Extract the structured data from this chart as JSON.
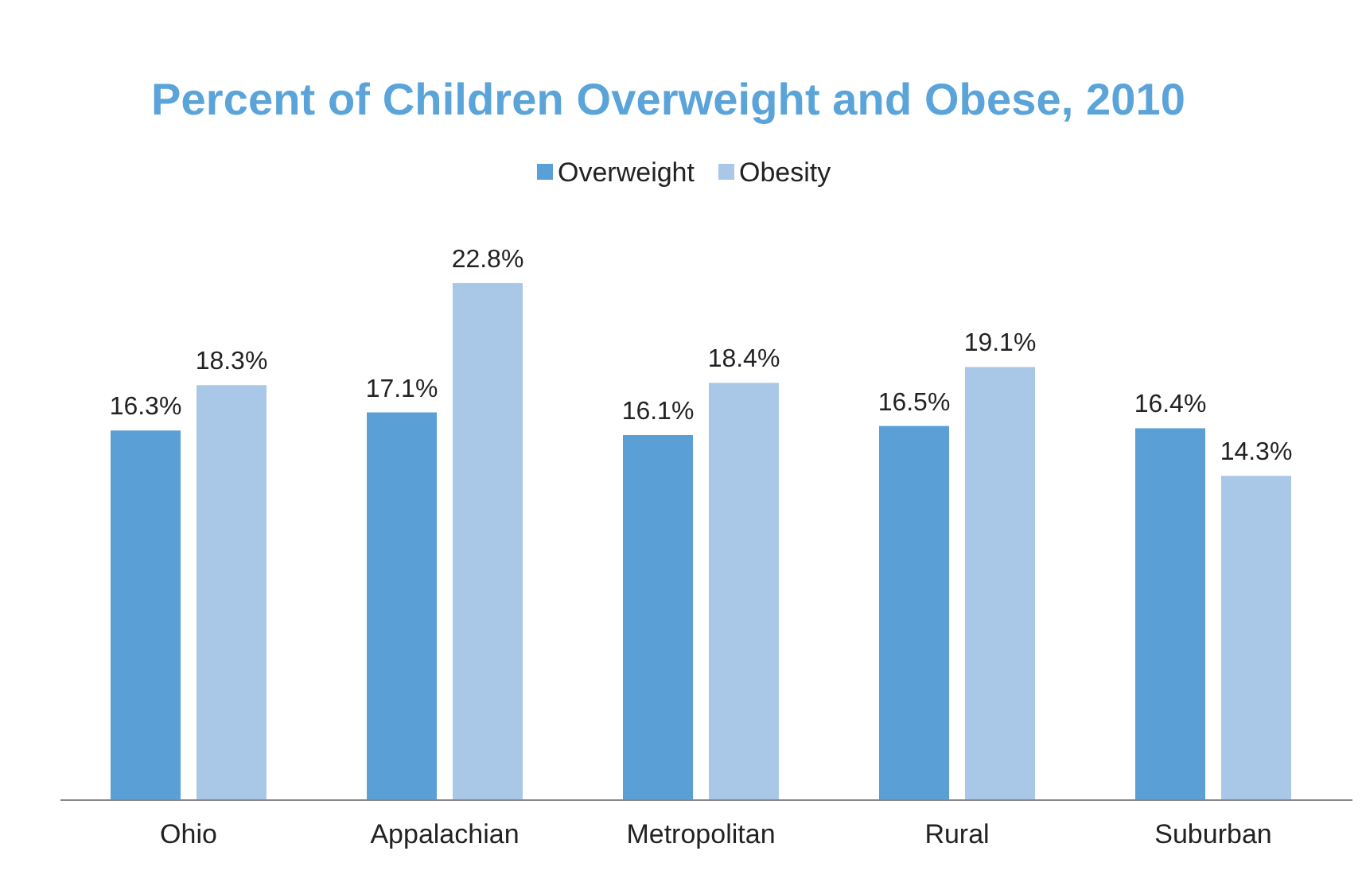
{
  "chart_data": {
    "type": "bar",
    "title": "Percent of Children Overweight and Obese, 2010",
    "categories": [
      "Ohio",
      "Appalachian",
      "Metropolitan",
      "Rural",
      "Suburban"
    ],
    "series": [
      {
        "name": "Overweight",
        "color": "#5a9fd5",
        "values": [
          16.3,
          17.1,
          16.1,
          16.5,
          16.4
        ],
        "value_labels": [
          "16.3%",
          "17.1%",
          "16.1%",
          "16.5%",
          "16.4%"
        ]
      },
      {
        "name": "Obesity",
        "color": "#a9c8e7",
        "values": [
          18.3,
          22.8,
          18.4,
          19.1,
          14.3
        ],
        "value_labels": [
          "18.3%",
          "22.8%",
          "18.4%",
          "19.1%",
          "14.3%"
        ]
      }
    ],
    "legend": "top"
  }
}
